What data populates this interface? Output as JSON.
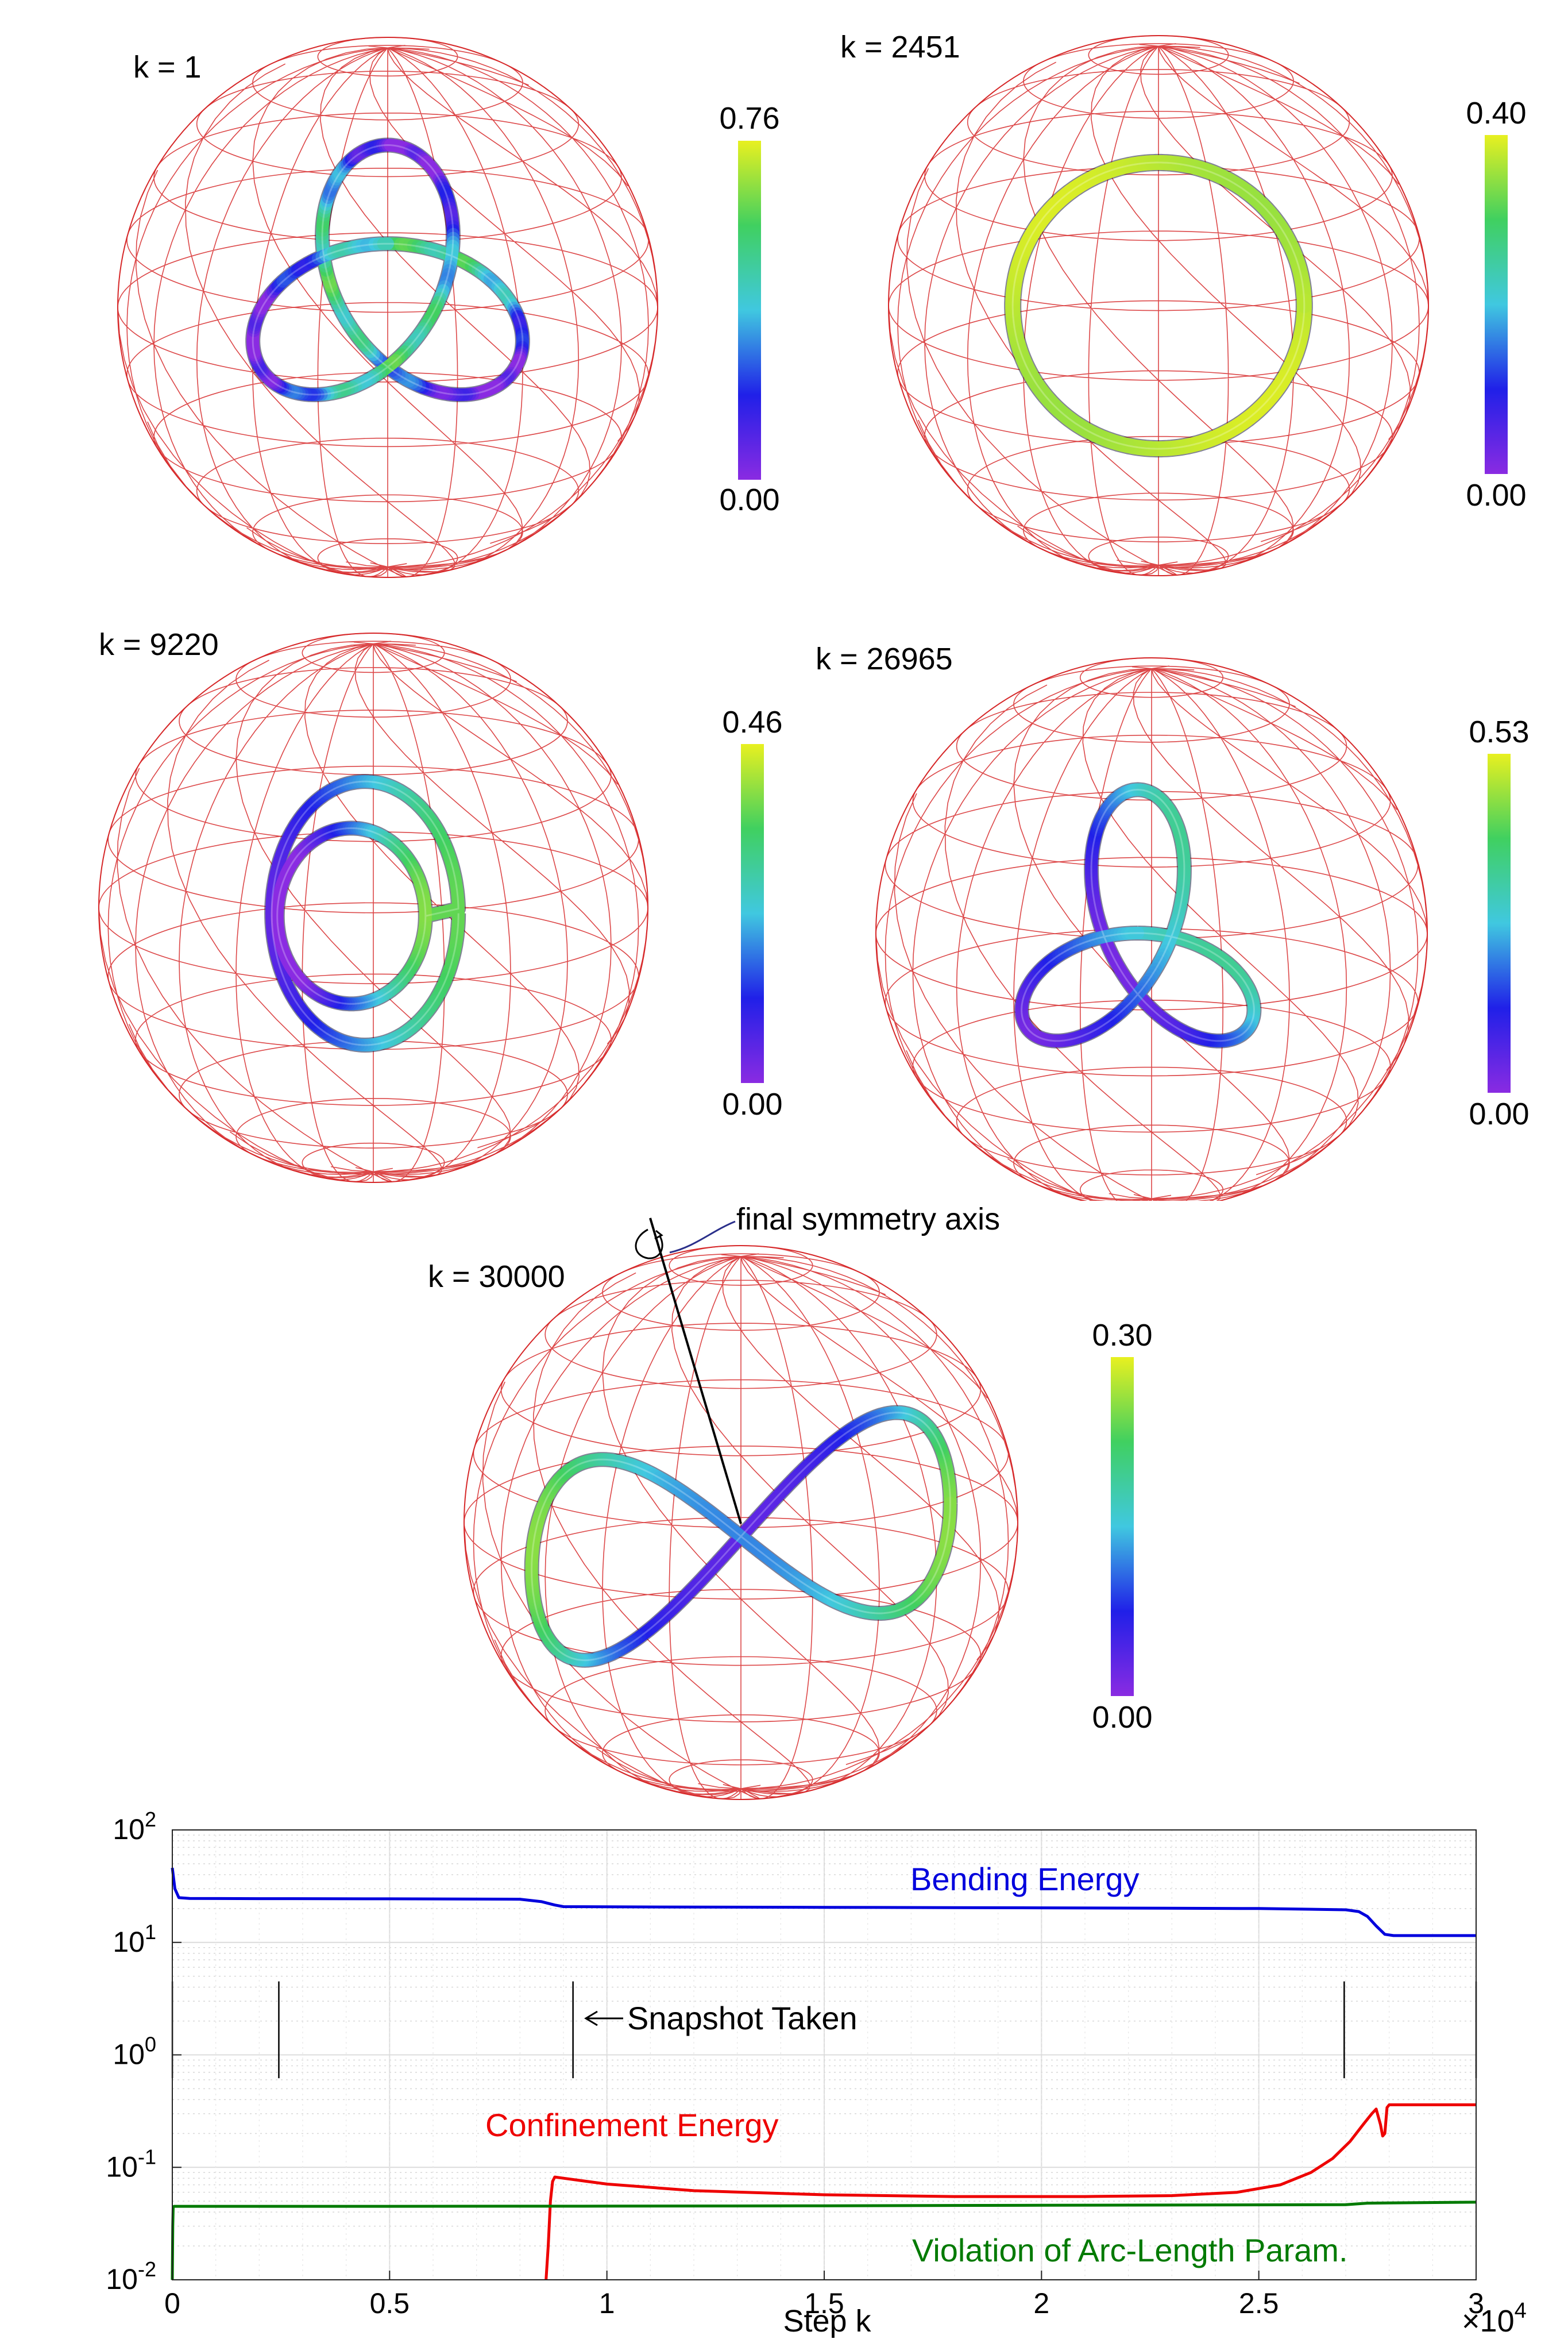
{
  "snapshots": [
    {
      "label": "k = 1",
      "cbar_max": "0.76",
      "cbar_min": "0.00",
      "shape": "trefoil"
    },
    {
      "label": "k = 2451",
      "cbar_max": "0.40",
      "cbar_min": "0.00",
      "shape": "circle"
    },
    {
      "label": "k = 9220",
      "cbar_max": "0.46",
      "cbar_min": "0.00",
      "shape": "double-loop"
    },
    {
      "label": "k = 26965",
      "cbar_max": "0.53",
      "cbar_min": "0.00",
      "shape": "twisted-trefoil"
    },
    {
      "label": "k = 30000",
      "cbar_max": "0.30",
      "cbar_min": "0.00",
      "shape": "figure-eight",
      "annotation": "final symmetry axis"
    }
  ],
  "colors": {
    "sphere_mesh": "#d62728",
    "colormap": [
      "#8a2be2",
      "#2020e8",
      "#40c8e0",
      "#40d060",
      "#e8f020"
    ],
    "bending": "#0000dd",
    "confinement": "#ee0000",
    "violation": "#007a00",
    "snapshot_marker": "#000000"
  },
  "chart_data": {
    "type": "line",
    "yscale": "log",
    "xlim": [
      0,
      30000
    ],
    "ylim": [
      0.01,
      100
    ],
    "xlabel": "Step k",
    "x_multiplier_label": "×10",
    "x_multiplier_exp": "4",
    "x_ticks": [
      "0",
      "0.5",
      "1",
      "1.5",
      "2",
      "2.5",
      "3"
    ],
    "x_tick_values": [
      0,
      5000,
      10000,
      15000,
      20000,
      25000,
      30000
    ],
    "y_tick_values": [
      0.01,
      0.1,
      1,
      10,
      100
    ],
    "y_tick_exps": [
      "-2",
      "-1",
      "0",
      "1",
      "2"
    ],
    "y_tick_base": "10",
    "grid": true,
    "snapshot_annotation": "Snapshot Taken",
    "snapshot_steps": [
      1,
      2451,
      9220,
      26965,
      30000
    ],
    "series": [
      {
        "name": "Bending Energy",
        "x": [
          0,
          60,
          150,
          400,
          2000,
          5000,
          8000,
          8500,
          8800,
          9000,
          12000,
          15000,
          20000,
          25000,
          27000,
          27300,
          27500,
          27700,
          27900,
          28100,
          29000,
          30000
        ],
        "y": [
          46,
          30,
          25,
          24.6,
          24.5,
          24.4,
          24.2,
          23,
          21.5,
          20.8,
          20.6,
          20.5,
          20.3,
          20.0,
          19.5,
          18.8,
          17,
          14,
          11.8,
          11.5,
          11.5,
          11.5
        ]
      },
      {
        "name": "Confinement Energy",
        "x": [
          8600,
          8650,
          8700,
          8750,
          8800,
          9000,
          10000,
          12000,
          15000,
          18000,
          21000,
          23000,
          24500,
          25500,
          26200,
          26700,
          27100,
          27400,
          27600,
          27700,
          27800,
          27850,
          27900,
          27950,
          28000,
          28100,
          28500,
          30000
        ],
        "y": [
          0.01,
          0.02,
          0.05,
          0.075,
          0.082,
          0.08,
          0.071,
          0.062,
          0.057,
          0.055,
          0.055,
          0.056,
          0.06,
          0.07,
          0.09,
          0.12,
          0.17,
          0.24,
          0.3,
          0.33,
          0.24,
          0.19,
          0.2,
          0.34,
          0.36,
          0.36,
          0.36,
          0.36
        ]
      },
      {
        "name": "Violation of Arc-Length Param.",
        "x": [
          0,
          10,
          20,
          40,
          5000,
          10000,
          15000,
          20000,
          27000,
          27500,
          30000
        ],
        "y": [
          0.01,
          0.03,
          0.044,
          0.045,
          0.045,
          0.0452,
          0.0455,
          0.046,
          0.0465,
          0.048,
          0.049
        ]
      }
    ]
  }
}
